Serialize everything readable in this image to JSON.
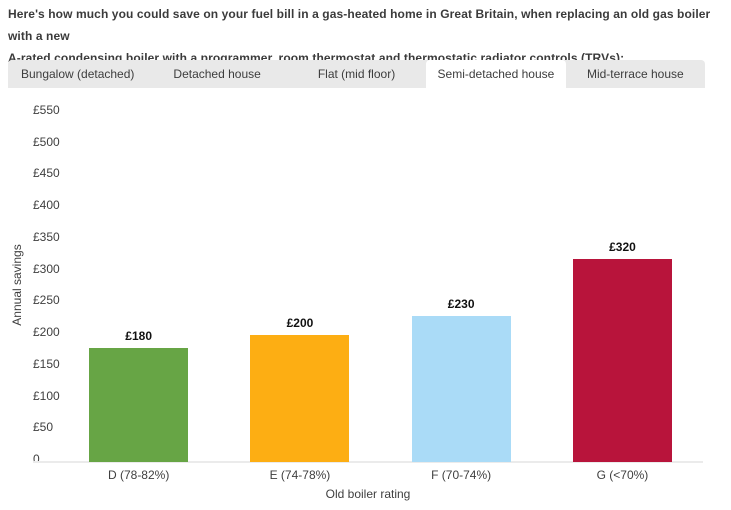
{
  "header": {
    "line1": "Here's how much you could save on your fuel bill in a gas-heated home in Great Britain, when replacing an old gas boiler with a new",
    "line2": "A-rated condensing boiler with a programmer, room thermostat and thermostatic radiator controls (TRVs):"
  },
  "tabs": {
    "items": [
      {
        "label": "Bungalow (detached)",
        "active": false
      },
      {
        "label": "Detached house",
        "active": false
      },
      {
        "label": "Flat (mid floor)",
        "active": false
      },
      {
        "label": "Semi-detached house",
        "active": true
      },
      {
        "label": "Mid-terrace house",
        "active": false
      }
    ],
    "bar_background": "#e9e9e9",
    "active_background": "#ffffff"
  },
  "chart_data": {
    "type": "bar",
    "title": "",
    "categories": [
      "D (78-82%)",
      "E (74-78%)",
      "F (70-74%)",
      "G (<70%)"
    ],
    "values": [
      180,
      200,
      230,
      320
    ],
    "value_labels": [
      "£180",
      "£200",
      "£230",
      "£320"
    ],
    "bar_colors": [
      "#67a545",
      "#fdae13",
      "#aadbf7",
      "#b8143b"
    ],
    "xlabel": "Old boiler rating",
    "ylabel": "Annual savings",
    "ylim": [
      0,
      550
    ],
    "ytick_step": 50,
    "ytick_labels": [
      "0",
      "£50",
      "£100",
      "£150",
      "£200",
      "£250",
      "£300",
      "£350",
      "£400",
      "£450",
      "£500",
      "£550"
    ],
    "grid": false,
    "legend": "none",
    "currency": "£"
  }
}
